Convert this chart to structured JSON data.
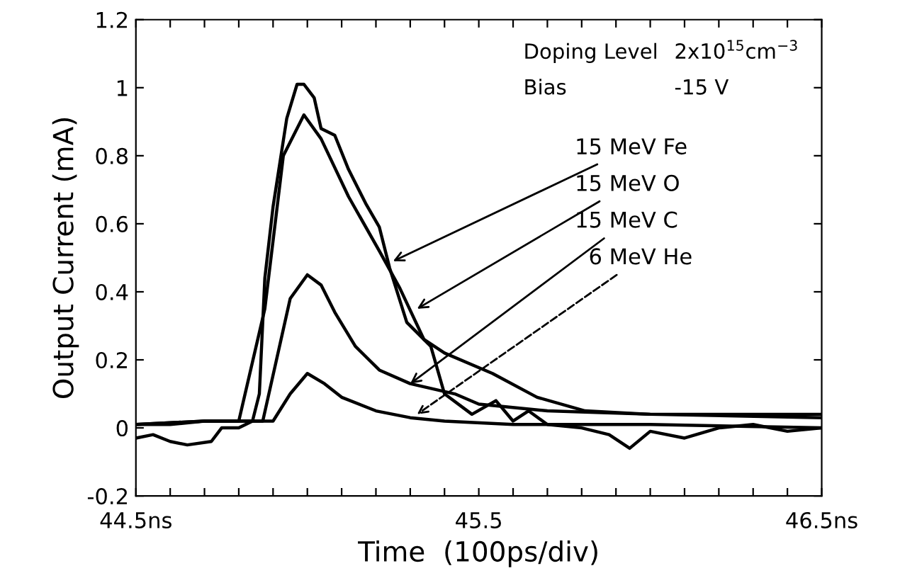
{
  "chart_data": {
    "type": "line",
    "xlabel": "Time  (100ps/div)",
    "ylabel": "Output Current (mA)",
    "xlim": [
      44.5,
      46.5
    ],
    "ylim": [
      -0.2,
      1.2
    ],
    "xticks": [
      {
        "value": 44.5,
        "label": "44.5ns"
      },
      {
        "value": 44.6,
        "label": null
      },
      {
        "value": 44.7,
        "label": null
      },
      {
        "value": 44.8,
        "label": null
      },
      {
        "value": 44.9,
        "label": null
      },
      {
        "value": 45.0,
        "label": null
      },
      {
        "value": 45.1,
        "label": null
      },
      {
        "value": 45.2,
        "label": null
      },
      {
        "value": 45.3,
        "label": null
      },
      {
        "value": 45.4,
        "label": null
      },
      {
        "value": 45.5,
        "label": "45.5"
      },
      {
        "value": 45.6,
        "label": null
      },
      {
        "value": 45.7,
        "label": null
      },
      {
        "value": 45.8,
        "label": null
      },
      {
        "value": 45.9,
        "label": null
      },
      {
        "value": 46.0,
        "label": null
      },
      {
        "value": 46.1,
        "label": null
      },
      {
        "value": 46.2,
        "label": null
      },
      {
        "value": 46.3,
        "label": null
      },
      {
        "value": 46.4,
        "label": null
      },
      {
        "value": 46.5,
        "label": "46.5ns"
      }
    ],
    "yticks": [
      -0.2,
      0,
      0.2,
      0.4,
      0.6,
      0.8,
      1,
      1.2
    ],
    "grid": false,
    "marker": "none",
    "line_style": "solid",
    "series": [
      {
        "color": "#000000",
        "x": [
          44.5,
          44.55,
          44.6,
          44.65,
          44.72,
          44.75,
          44.8,
          44.84,
          44.86,
          44.876,
          44.9,
          44.94,
          44.97,
          44.99,
          45.02,
          45.04,
          45.08,
          45.12,
          45.17,
          45.21,
          45.24,
          45.29,
          45.36,
          45.4,
          45.48,
          45.55,
          45.6,
          45.645,
          45.7,
          45.8,
          45.88,
          45.94,
          46.0,
          46.1,
          46.2,
          46.3,
          46.4,
          46.5
        ],
        "values": [
          -0.03,
          -0.02,
          -0.04,
          -0.05,
          -0.04,
          0.0,
          0.0,
          0.02,
          0.1,
          0.44,
          0.65,
          0.91,
          1.01,
          1.01,
          0.97,
          0.88,
          0.86,
          0.76,
          0.66,
          0.59,
          0.47,
          0.31,
          0.24,
          0.1,
          0.04,
          0.08,
          0.02,
          0.05,
          0.01,
          0.0,
          -0.02,
          -0.06,
          -0.01,
          -0.03,
          0.0,
          0.01,
          -0.01,
          0.0
        ]
      },
      {
        "color": "#000000",
        "x": [
          44.5,
          44.6,
          44.7,
          44.8,
          44.876,
          44.93,
          44.99,
          45.04,
          45.12,
          45.21,
          45.27,
          45.34,
          45.4,
          45.54,
          45.67,
          45.81,
          46.0,
          46.5
        ],
        "values": [
          0.01,
          0.01,
          0.02,
          0.02,
          0.35,
          0.8,
          0.92,
          0.85,
          0.68,
          0.52,
          0.41,
          0.26,
          0.22,
          0.16,
          0.09,
          0.05,
          0.04,
          0.03
        ]
      },
      {
        "color": "#000000",
        "x": [
          44.5,
          44.7,
          44.87,
          44.91,
          44.95,
          45.0,
          45.04,
          45.08,
          45.14,
          45.21,
          45.3,
          45.43,
          45.5,
          45.7,
          46.0,
          46.5
        ],
        "values": [
          0.01,
          0.02,
          0.02,
          0.2,
          0.38,
          0.45,
          0.42,
          0.34,
          0.24,
          0.17,
          0.13,
          0.1,
          0.07,
          0.05,
          0.04,
          0.04
        ]
      },
      {
        "color": "#000000",
        "x": [
          44.5,
          44.7,
          44.9,
          44.95,
          45.0,
          45.05,
          45.1,
          45.2,
          45.3,
          45.4,
          45.6,
          46.0,
          46.5
        ],
        "values": [
          0.01,
          0.02,
          0.02,
          0.1,
          0.16,
          0.13,
          0.09,
          0.05,
          0.03,
          0.02,
          0.01,
          0.01,
          0.0
        ]
      }
    ],
    "annotations": [
      "Doping Level",
      "2x10$^{15}$cm$^{−3}$",
      "Bias",
      "-15 V",
      {
        "text": "15 MeV Fe",
        "x": 45.25,
        "y": 0.49
      },
      {
        "text": "15 MeV O",
        "x": 45.32,
        "y": 0.35
      },
      {
        "text": "15 MeV C",
        "x": 45.3,
        "y": 0.13
      },
      {
        "text": "6 MeV He",
        "x": 45.32,
        "y": 0.04
      }
    ]
  }
}
